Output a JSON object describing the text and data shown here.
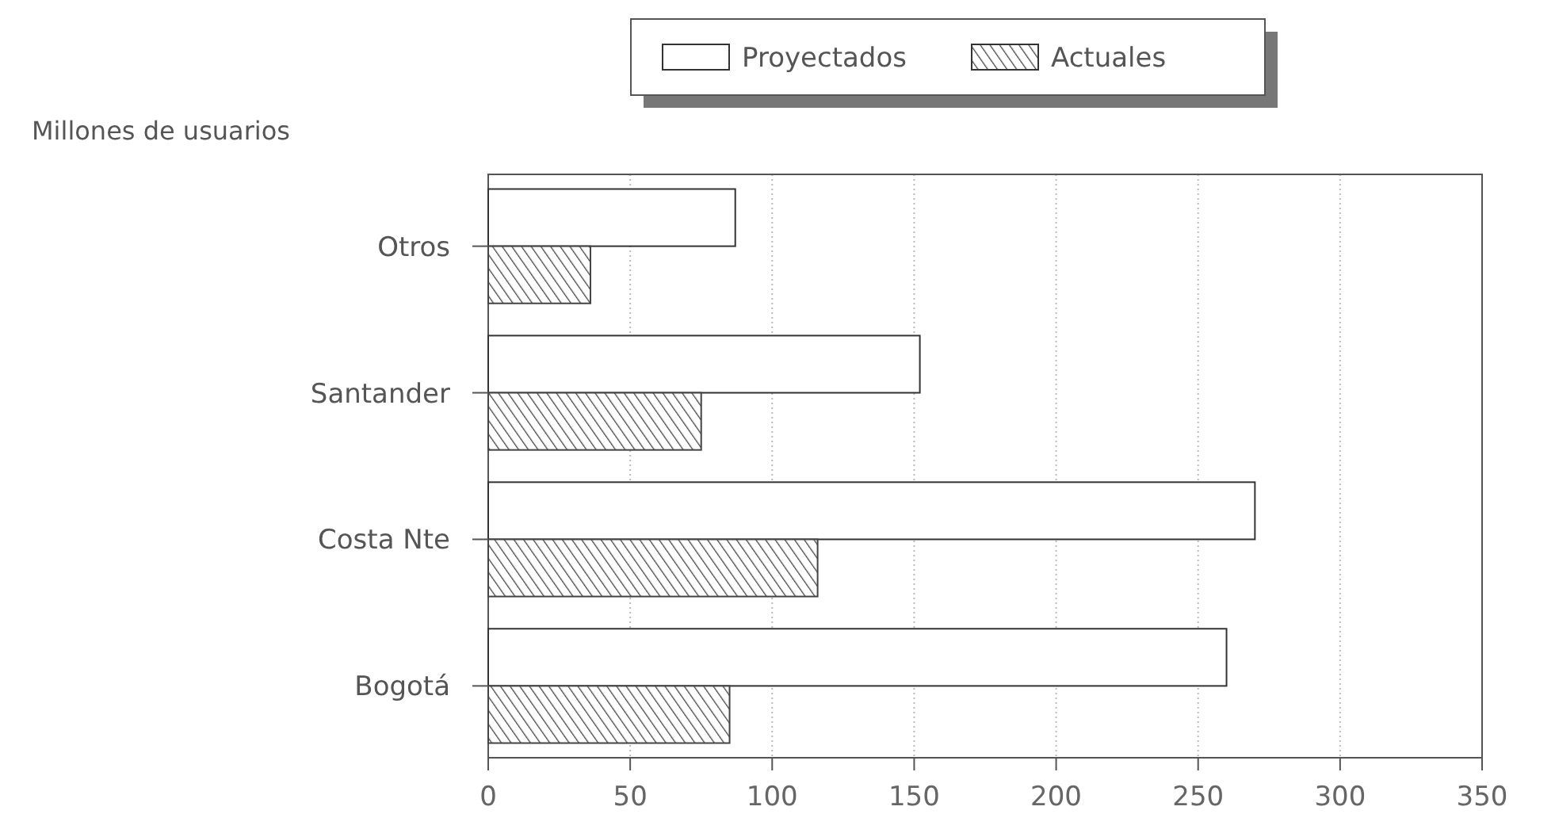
{
  "chart_data": {
    "type": "bar",
    "orientation": "horizontal",
    "ylabel": "Millones de usuarios",
    "categories": [
      "Otros",
      "Santander",
      "Costa Nte",
      "Bogotá"
    ],
    "series": [
      {
        "name": "Proyectados",
        "color": "#ffffff",
        "values": [
          87,
          152,
          270,
          260
        ]
      },
      {
        "name": "Actuales",
        "color": "#444444",
        "values": [
          36,
          75,
          116,
          85
        ]
      }
    ],
    "xlim": [
      0,
      350
    ],
    "xticks": [
      0,
      50,
      100,
      150,
      200,
      250,
      300,
      350
    ],
    "grid": "x",
    "legend": "top"
  }
}
